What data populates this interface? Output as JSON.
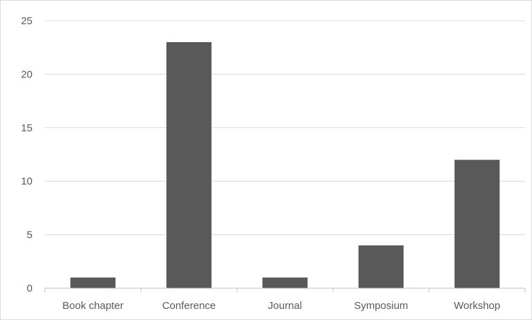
{
  "chart_data": {
    "type": "bar",
    "categories": [
      "Book chapter",
      "Conference",
      "Journal",
      "Symposium",
      "Workshop"
    ],
    "values": [
      1,
      23,
      1,
      4,
      12
    ],
    "title": "",
    "xlabel": "",
    "ylabel": "",
    "ylim": [
      0,
      25
    ],
    "yticks": [
      0,
      5,
      10,
      15,
      20,
      25
    ],
    "grid": true,
    "legend": "none",
    "bar_color": "#595959"
  }
}
